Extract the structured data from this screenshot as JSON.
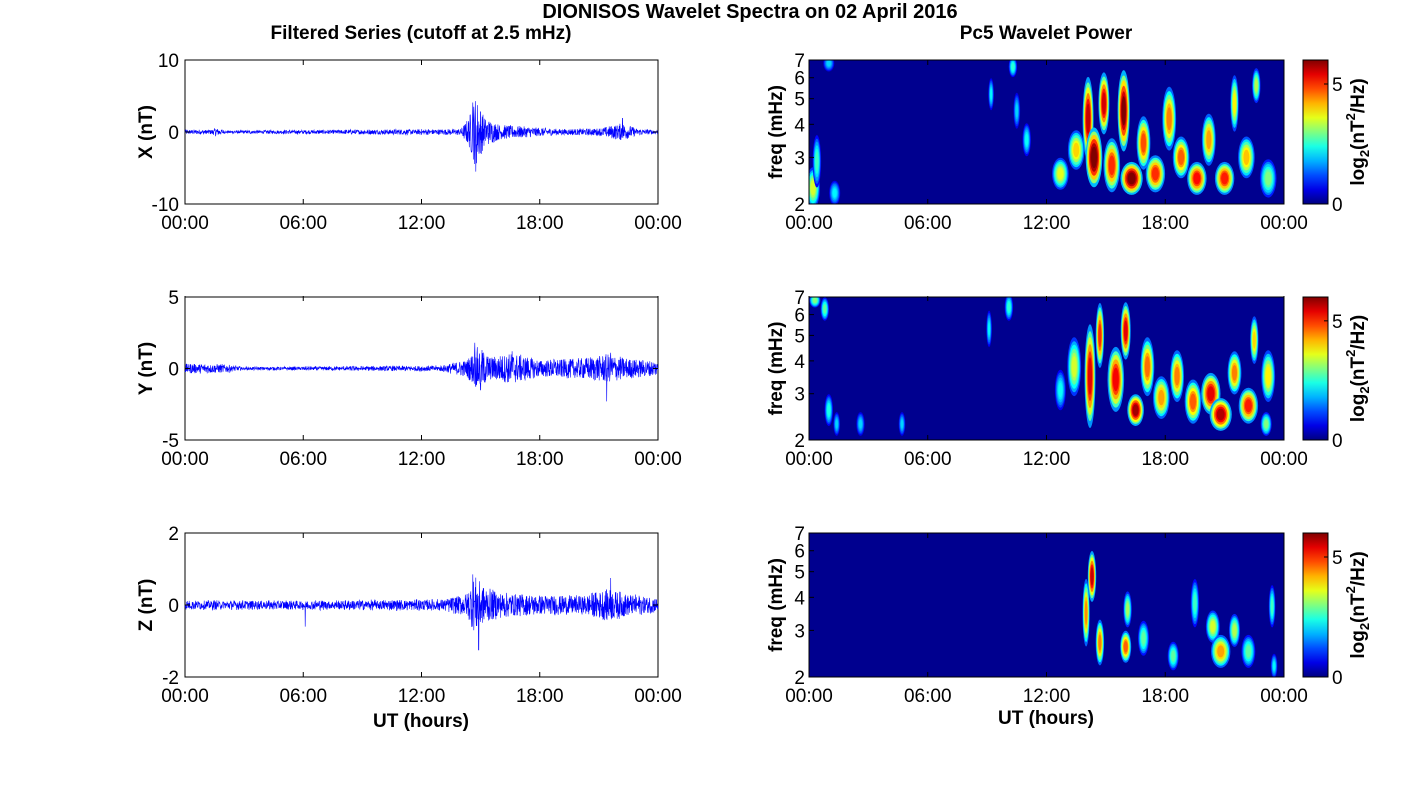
{
  "title": "DIONISOS Wavelet Spectra on 02 April 2016",
  "left_title": "Filtered Series (cutoff at 2.5 mHz)",
  "right_title": "Pc5 Wavelet Power",
  "time_ticks": [
    "00:00",
    "06:00",
    "12:00",
    "18:00",
    "00:00"
  ],
  "xlabel": "UT (hours)",
  "freq_label": "freq (mHz)",
  "colorbar": {
    "label_main": "log",
    "label_sub": "2",
    "label_open": "(nT",
    "label_sup": "2",
    "label_close": "/Hz)",
    "ticks": [
      "0",
      "5"
    ],
    "range": [
      0,
      6
    ],
    "colormap": "jet"
  },
  "colors": {
    "trace": "#0000ff",
    "background": "#00008f"
  },
  "chart_data": [
    {
      "type": "line",
      "name": "X",
      "ylabel": "X (nT)",
      "xlim": [
        0,
        24
      ],
      "ylim": [
        -10,
        10
      ],
      "yticks": [
        "10",
        "0",
        "-10"
      ],
      "base_amp": 0.15,
      "envelope": [
        [
          0,
          0.3
        ],
        [
          1.3,
          0.3
        ],
        [
          1.6,
          0.6
        ],
        [
          2,
          0.2
        ],
        [
          14,
          0.4
        ],
        [
          14.4,
          2.0
        ],
        [
          14.75,
          5.0
        ],
        [
          15.2,
          2.0
        ],
        [
          16,
          1.0
        ],
        [
          17,
          0.8
        ],
        [
          19,
          0.4
        ],
        [
          21,
          0.5
        ],
        [
          22.2,
          1.2
        ],
        [
          23,
          0.4
        ],
        [
          24,
          0.3
        ]
      ],
      "spikes": [
        [
          14.6,
          4.1
        ],
        [
          14.75,
          -5.5
        ],
        [
          15.0,
          2.8
        ],
        [
          22.2,
          1.9
        ]
      ],
      "grid": false
    },
    {
      "type": "line",
      "name": "Y",
      "ylabel": "Y (nT)",
      "xlim": [
        0,
        24
      ],
      "ylim": [
        -5,
        5
      ],
      "yticks": [
        "5",
        "0",
        "-5"
      ],
      "base_amp": 0.1,
      "envelope": [
        [
          0,
          0.35
        ],
        [
          2,
          0.3
        ],
        [
          3,
          0.1
        ],
        [
          9,
          0.15
        ],
        [
          13,
          0.2
        ],
        [
          14.3,
          0.6
        ],
        [
          14.9,
          1.6
        ],
        [
          15.5,
          0.8
        ],
        [
          16.6,
          1.1
        ],
        [
          18,
          0.6
        ],
        [
          20,
          0.7
        ],
        [
          21.5,
          1.0
        ],
        [
          22.5,
          0.7
        ],
        [
          24,
          0.5
        ]
      ],
      "spikes": [
        [
          14.7,
          1.8
        ],
        [
          15.0,
          -1.5
        ],
        [
          16.6,
          1.2
        ],
        [
          21.4,
          -2.3
        ],
        [
          21.6,
          1.1
        ]
      ],
      "grid": false
    },
    {
      "type": "line",
      "name": "Z",
      "ylabel": "Z (nT)",
      "xlim": [
        0,
        24
      ],
      "ylim": [
        -2,
        2
      ],
      "yticks": [
        "2",
        "0",
        "-2"
      ],
      "base_amp": 0.07,
      "envelope": [
        [
          0,
          0.12
        ],
        [
          6,
          0.12
        ],
        [
          13,
          0.15
        ],
        [
          14.3,
          0.3
        ],
        [
          14.7,
          0.8
        ],
        [
          15.2,
          0.5
        ],
        [
          16,
          0.35
        ],
        [
          17,
          0.3
        ],
        [
          20,
          0.25
        ],
        [
          21.5,
          0.45
        ],
        [
          22.5,
          0.3
        ],
        [
          24,
          0.2
        ]
      ],
      "spikes": [
        [
          6.1,
          -0.6
        ],
        [
          14.6,
          0.85
        ],
        [
          14.9,
          -1.25
        ],
        [
          21.6,
          0.75
        ]
      ],
      "grid": false
    },
    {
      "type": "heatmap",
      "name": "X",
      "ylabel": "freq (mHz)",
      "xlim": [
        0,
        24
      ],
      "ylim": [
        2,
        7
      ],
      "yticks": [
        "2",
        "3",
        "4",
        "5",
        "6",
        "7"
      ],
      "blobs": [
        [
          0.2,
          2.3,
          0.25,
          0.6,
          3.5
        ],
        [
          0.4,
          2.9,
          0.15,
          1.0,
          2.6
        ],
        [
          1.3,
          2.2,
          0.2,
          0.3,
          2.2
        ],
        [
          1.0,
          6.8,
          0.2,
          0.5,
          2.0
        ],
        [
          9.2,
          5.2,
          0.1,
          1.0,
          2.2
        ],
        [
          10.3,
          6.6,
          0.15,
          0.7,
          2.5
        ],
        [
          10.5,
          4.5,
          0.12,
          1.0,
          2.0
        ],
        [
          11.0,
          3.5,
          0.15,
          0.7,
          2.3
        ],
        [
          12.7,
          2.6,
          0.3,
          0.5,
          3.6
        ],
        [
          13.5,
          3.2,
          0.3,
          0.8,
          4.0
        ],
        [
          14.1,
          4.2,
          0.2,
          2.4,
          5.6
        ],
        [
          14.4,
          3.0,
          0.3,
          1.2,
          6.2
        ],
        [
          14.9,
          4.8,
          0.2,
          2.0,
          5.5
        ],
        [
          15.3,
          2.8,
          0.3,
          1.0,
          5.0
        ],
        [
          15.9,
          4.5,
          0.22,
          2.5,
          6.0
        ],
        [
          16.3,
          2.5,
          0.4,
          0.5,
          6.1
        ],
        [
          16.9,
          3.4,
          0.25,
          1.2,
          4.8
        ],
        [
          17.5,
          2.6,
          0.35,
          0.6,
          5.0
        ],
        [
          18.2,
          4.2,
          0.25,
          1.8,
          4.5
        ],
        [
          18.8,
          3.0,
          0.3,
          0.8,
          4.7
        ],
        [
          19.6,
          2.5,
          0.35,
          0.5,
          5.2
        ],
        [
          20.2,
          3.5,
          0.25,
          1.2,
          4.3
        ],
        [
          21.0,
          2.5,
          0.35,
          0.5,
          5.1
        ],
        [
          21.5,
          4.8,
          0.15,
          1.8,
          3.8
        ],
        [
          22.1,
          3.0,
          0.3,
          0.8,
          4.1
        ],
        [
          22.6,
          5.6,
          0.15,
          1.2,
          3.3
        ],
        [
          23.2,
          2.5,
          0.3,
          0.6,
          3.0
        ]
      ],
      "grid": false
    },
    {
      "type": "heatmap",
      "name": "Y",
      "ylabel": "freq (mHz)",
      "xlim": [
        0,
        24
      ],
      "ylim": [
        2,
        7
      ],
      "yticks": [
        "2",
        "3",
        "4",
        "5",
        "6",
        "7"
      ],
      "blobs": [
        [
          0.3,
          6.8,
          0.2,
          0.4,
          3.0
        ],
        [
          0.8,
          6.3,
          0.15,
          0.8,
          2.8
        ],
        [
          1.0,
          2.6,
          0.15,
          0.5,
          2.4
        ],
        [
          1.4,
          2.3,
          0.12,
          0.3,
          2.0
        ],
        [
          2.6,
          2.3,
          0.15,
          0.3,
          2.0
        ],
        [
          4.7,
          2.3,
          0.12,
          0.3,
          2.0
        ],
        [
          9.1,
          5.3,
          0.1,
          1.2,
          2.2
        ],
        [
          10.1,
          6.4,
          0.15,
          1.0,
          2.5
        ],
        [
          12.7,
          3.1,
          0.2,
          0.8,
          2.3
        ],
        [
          13.4,
          3.8,
          0.25,
          1.5,
          3.5
        ],
        [
          14.2,
          3.5,
          0.2,
          2.5,
          5.4
        ],
        [
          14.7,
          5.0,
          0.15,
          2.2,
          5.0
        ],
        [
          15.5,
          3.4,
          0.3,
          1.5,
          5.3
        ],
        [
          16.0,
          5.2,
          0.18,
          2.0,
          5.4
        ],
        [
          16.5,
          2.6,
          0.3,
          0.5,
          5.8
        ],
        [
          17.1,
          3.8,
          0.25,
          1.5,
          4.6
        ],
        [
          17.8,
          2.9,
          0.3,
          0.8,
          4.3
        ],
        [
          18.6,
          3.5,
          0.25,
          1.2,
          4.5
        ],
        [
          19.4,
          2.8,
          0.3,
          0.8,
          4.7
        ],
        [
          20.3,
          3.0,
          0.35,
          0.8,
          5.4
        ],
        [
          20.8,
          2.5,
          0.4,
          0.5,
          5.7
        ],
        [
          21.5,
          3.6,
          0.25,
          1.0,
          4.5
        ],
        [
          22.2,
          2.7,
          0.35,
          0.6,
          5.1
        ],
        [
          22.5,
          4.8,
          0.15,
          1.5,
          4.0
        ],
        [
          23.2,
          3.5,
          0.25,
          1.2,
          3.8
        ],
        [
          23.1,
          2.3,
          0.2,
          0.3,
          3.0
        ]
      ],
      "grid": false
    },
    {
      "type": "heatmap",
      "name": "Z",
      "ylabel": "freq (mHz)",
      "xlim": [
        0,
        24
      ],
      "ylim": [
        2,
        7
      ],
      "yticks": [
        "2",
        "3",
        "4",
        "5",
        "6",
        "7"
      ],
      "blobs": [
        [
          14.0,
          3.5,
          0.13,
          1.6,
          4.4
        ],
        [
          14.3,
          4.8,
          0.15,
          1.6,
          5.6
        ],
        [
          14.7,
          2.7,
          0.15,
          0.8,
          4.5
        ],
        [
          16.0,
          2.6,
          0.2,
          0.5,
          4.7
        ],
        [
          16.1,
          3.6,
          0.15,
          0.8,
          3.2
        ],
        [
          16.9,
          2.8,
          0.2,
          0.6,
          2.8
        ],
        [
          18.4,
          2.4,
          0.2,
          0.4,
          2.8
        ],
        [
          19.5,
          3.8,
          0.15,
          1.2,
          2.6
        ],
        [
          20.4,
          3.1,
          0.25,
          0.6,
          3.5
        ],
        [
          20.8,
          2.5,
          0.35,
          0.5,
          4.3
        ],
        [
          21.5,
          3.0,
          0.2,
          0.6,
          3.3
        ],
        [
          22.2,
          2.5,
          0.25,
          0.5,
          2.8
        ],
        [
          23.4,
          3.7,
          0.12,
          1.0,
          2.6
        ],
        [
          23.5,
          2.2,
          0.12,
          0.3,
          2.2
        ]
      ],
      "grid": false
    }
  ]
}
